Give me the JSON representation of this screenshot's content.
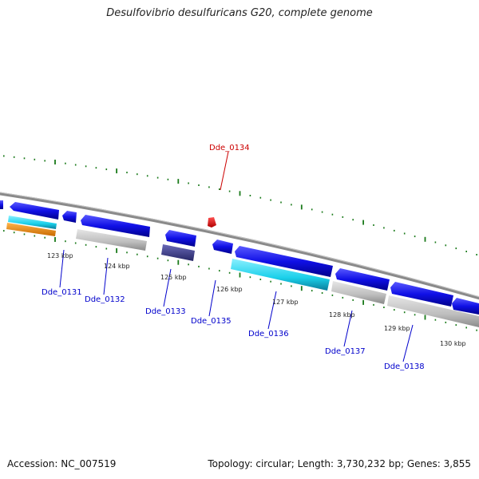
{
  "title": "Desulfovibrio desulfuricans G20, complete genome",
  "footer": {
    "accession": "Accession: NC_007519",
    "summary": "Topology: circular; Length: 3,730,232 bp; Genes: 3,855"
  },
  "colors": {
    "forward_gene": "#1010e6",
    "reverse_gene": "#1010e6",
    "highlight_gene": "#e60000",
    "rna_gray": "#b8b8b8",
    "cyan": "#22d6ea",
    "orange": "#ee8a10",
    "navy": "#3d3d8c",
    "tick_green": "#1a7a1a",
    "label_blue": "#0000cc",
    "label_red": "#cc0000",
    "backbone": "#888888"
  },
  "kbp_labels": [
    "123 kbp",
    "124 kbp",
    "125 kbp",
    "126 kbp",
    "127 kbp",
    "128 kbp",
    "129 kbp",
    "130 kbp"
  ],
  "gene_labels": {
    "dde_0131": "Dde_0131",
    "dde_0132": "Dde_0132",
    "dde_0133": "Dde_0133",
    "dde_0134": "Dde_0134",
    "dde_0135": "Dde_0135",
    "dde_0136": "Dde_0136",
    "dde_0137": "Dde_0137",
    "dde_0138": "Dde_0138"
  }
}
